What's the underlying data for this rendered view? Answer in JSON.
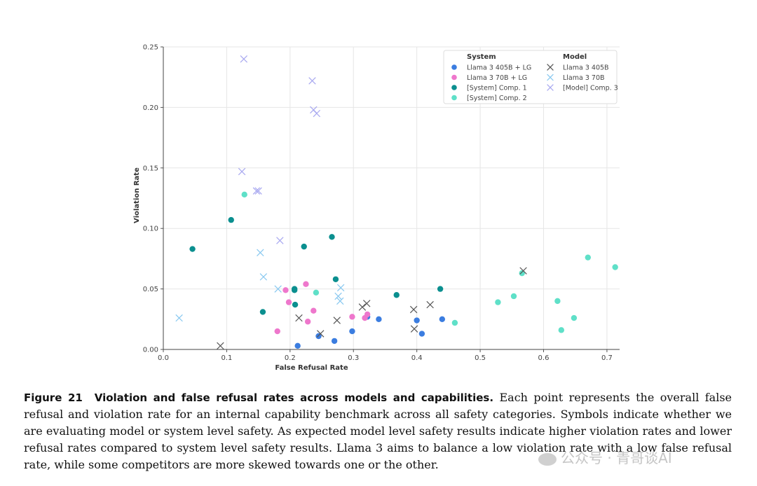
{
  "chart_data": {
    "type": "scatter",
    "xlabel": "False Refusal Rate",
    "ylabel": "Violation Rate",
    "xlim": [
      0,
      0.72
    ],
    "ylim": [
      0,
      0.25
    ],
    "xticks": [
      0.0,
      0.1,
      0.2,
      0.3,
      0.4,
      0.5,
      0.6,
      0.7
    ],
    "xtick_labels": [
      "0.0",
      "0.1",
      "0.2",
      "0.3",
      "0.4",
      "0.5",
      "0.6",
      "0.7"
    ],
    "yticks": [
      0.0,
      0.05,
      0.1,
      0.15,
      0.2,
      0.25
    ],
    "ytick_labels": [
      "0.00",
      "0.05",
      "0.10",
      "0.15",
      "0.20",
      "0.25"
    ],
    "grid": true,
    "legend": {
      "placement": "top-right",
      "system_title": "System",
      "model_title": "Model"
    },
    "series": [
      {
        "name": "Llama 3 405B + LG",
        "group": "system",
        "marker": "circle",
        "color": "#3b7de0",
        "points": [
          [
            0.212,
            0.003
          ],
          [
            0.245,
            0.011
          ],
          [
            0.27,
            0.007
          ],
          [
            0.298,
            0.015
          ],
          [
            0.322,
            0.027
          ],
          [
            0.34,
            0.025
          ],
          [
            0.4,
            0.024
          ],
          [
            0.408,
            0.013
          ],
          [
            0.44,
            0.025
          ]
        ]
      },
      {
        "name": "Llama 3 70B + LG",
        "group": "system",
        "marker": "circle",
        "color": "#ee77cc",
        "points": [
          [
            0.18,
            0.015
          ],
          [
            0.193,
            0.049
          ],
          [
            0.198,
            0.039
          ],
          [
            0.225,
            0.054
          ],
          [
            0.228,
            0.023
          ],
          [
            0.237,
            0.032
          ],
          [
            0.298,
            0.027
          ],
          [
            0.318,
            0.026
          ],
          [
            0.322,
            0.029
          ]
        ]
      },
      {
        "name": "[System] Comp. 1",
        "group": "system",
        "marker": "circle",
        "color": "#0b8f8f",
        "points": [
          [
            0.046,
            0.083
          ],
          [
            0.107,
            0.107
          ],
          [
            0.157,
            0.031
          ],
          [
            0.207,
            0.049
          ],
          [
            0.207,
            0.05
          ],
          [
            0.208,
            0.037
          ],
          [
            0.222,
            0.085
          ],
          [
            0.266,
            0.093
          ],
          [
            0.272,
            0.058
          ],
          [
            0.368,
            0.045
          ],
          [
            0.437,
            0.05
          ]
        ]
      },
      {
        "name": "[System] Comp. 2",
        "group": "system",
        "marker": "circle",
        "color": "#5fe0c8",
        "points": [
          [
            0.128,
            0.128
          ],
          [
            0.241,
            0.047
          ],
          [
            0.46,
            0.022
          ],
          [
            0.528,
            0.039
          ],
          [
            0.553,
            0.044
          ],
          [
            0.566,
            0.063
          ],
          [
            0.622,
            0.04
          ],
          [
            0.628,
            0.016
          ],
          [
            0.648,
            0.026
          ],
          [
            0.67,
            0.076
          ],
          [
            0.713,
            0.068
          ]
        ]
      },
      {
        "name": "Llama 3 405B",
        "group": "model",
        "marker": "x",
        "color": "#555555",
        "points": [
          [
            0.09,
            0.003
          ],
          [
            0.214,
            0.026
          ],
          [
            0.248,
            0.013
          ],
          [
            0.274,
            0.024
          ],
          [
            0.314,
            0.035
          ],
          [
            0.321,
            0.038
          ],
          [
            0.395,
            0.033
          ],
          [
            0.396,
            0.017
          ],
          [
            0.421,
            0.037
          ],
          [
            0.568,
            0.065
          ]
        ]
      },
      {
        "name": "Llama 3 70B",
        "group": "model",
        "marker": "x",
        "color": "#88c8f0",
        "points": [
          [
            0.025,
            0.026
          ],
          [
            0.153,
            0.08
          ],
          [
            0.158,
            0.06
          ],
          [
            0.181,
            0.05
          ],
          [
            0.276,
            0.044
          ],
          [
            0.279,
            0.04
          ],
          [
            0.28,
            0.051
          ]
        ]
      },
      {
        "name": "[Model] Comp. 3",
        "group": "model",
        "marker": "x",
        "color": "#a8a8f0",
        "points": [
          [
            0.127,
            0.24
          ],
          [
            0.124,
            0.147
          ],
          [
            0.147,
            0.131
          ],
          [
            0.15,
            0.131
          ],
          [
            0.184,
            0.09
          ],
          [
            0.235,
            0.222
          ],
          [
            0.237,
            0.198
          ],
          [
            0.242,
            0.195
          ]
        ]
      }
    ]
  },
  "caption": {
    "label": "Figure 21",
    "title": "Violation and false refusal rates across models and capabilities.",
    "body": "Each point represents the overall false refusal and violation rate for an internal capability benchmark across all safety categories. Symbols indicate whether we are evaluating model or system level safety. As expected model level safety results indicate higher violation rates and lower refusal rates compared to system level safety results. Llama 3 aims to balance a low violation rate with a low false refusal rate, while some competitors are more skewed towards one or the other."
  },
  "watermark": {
    "text": "公众号 · 青哥谈AI",
    "icon": "wechat-icon"
  }
}
